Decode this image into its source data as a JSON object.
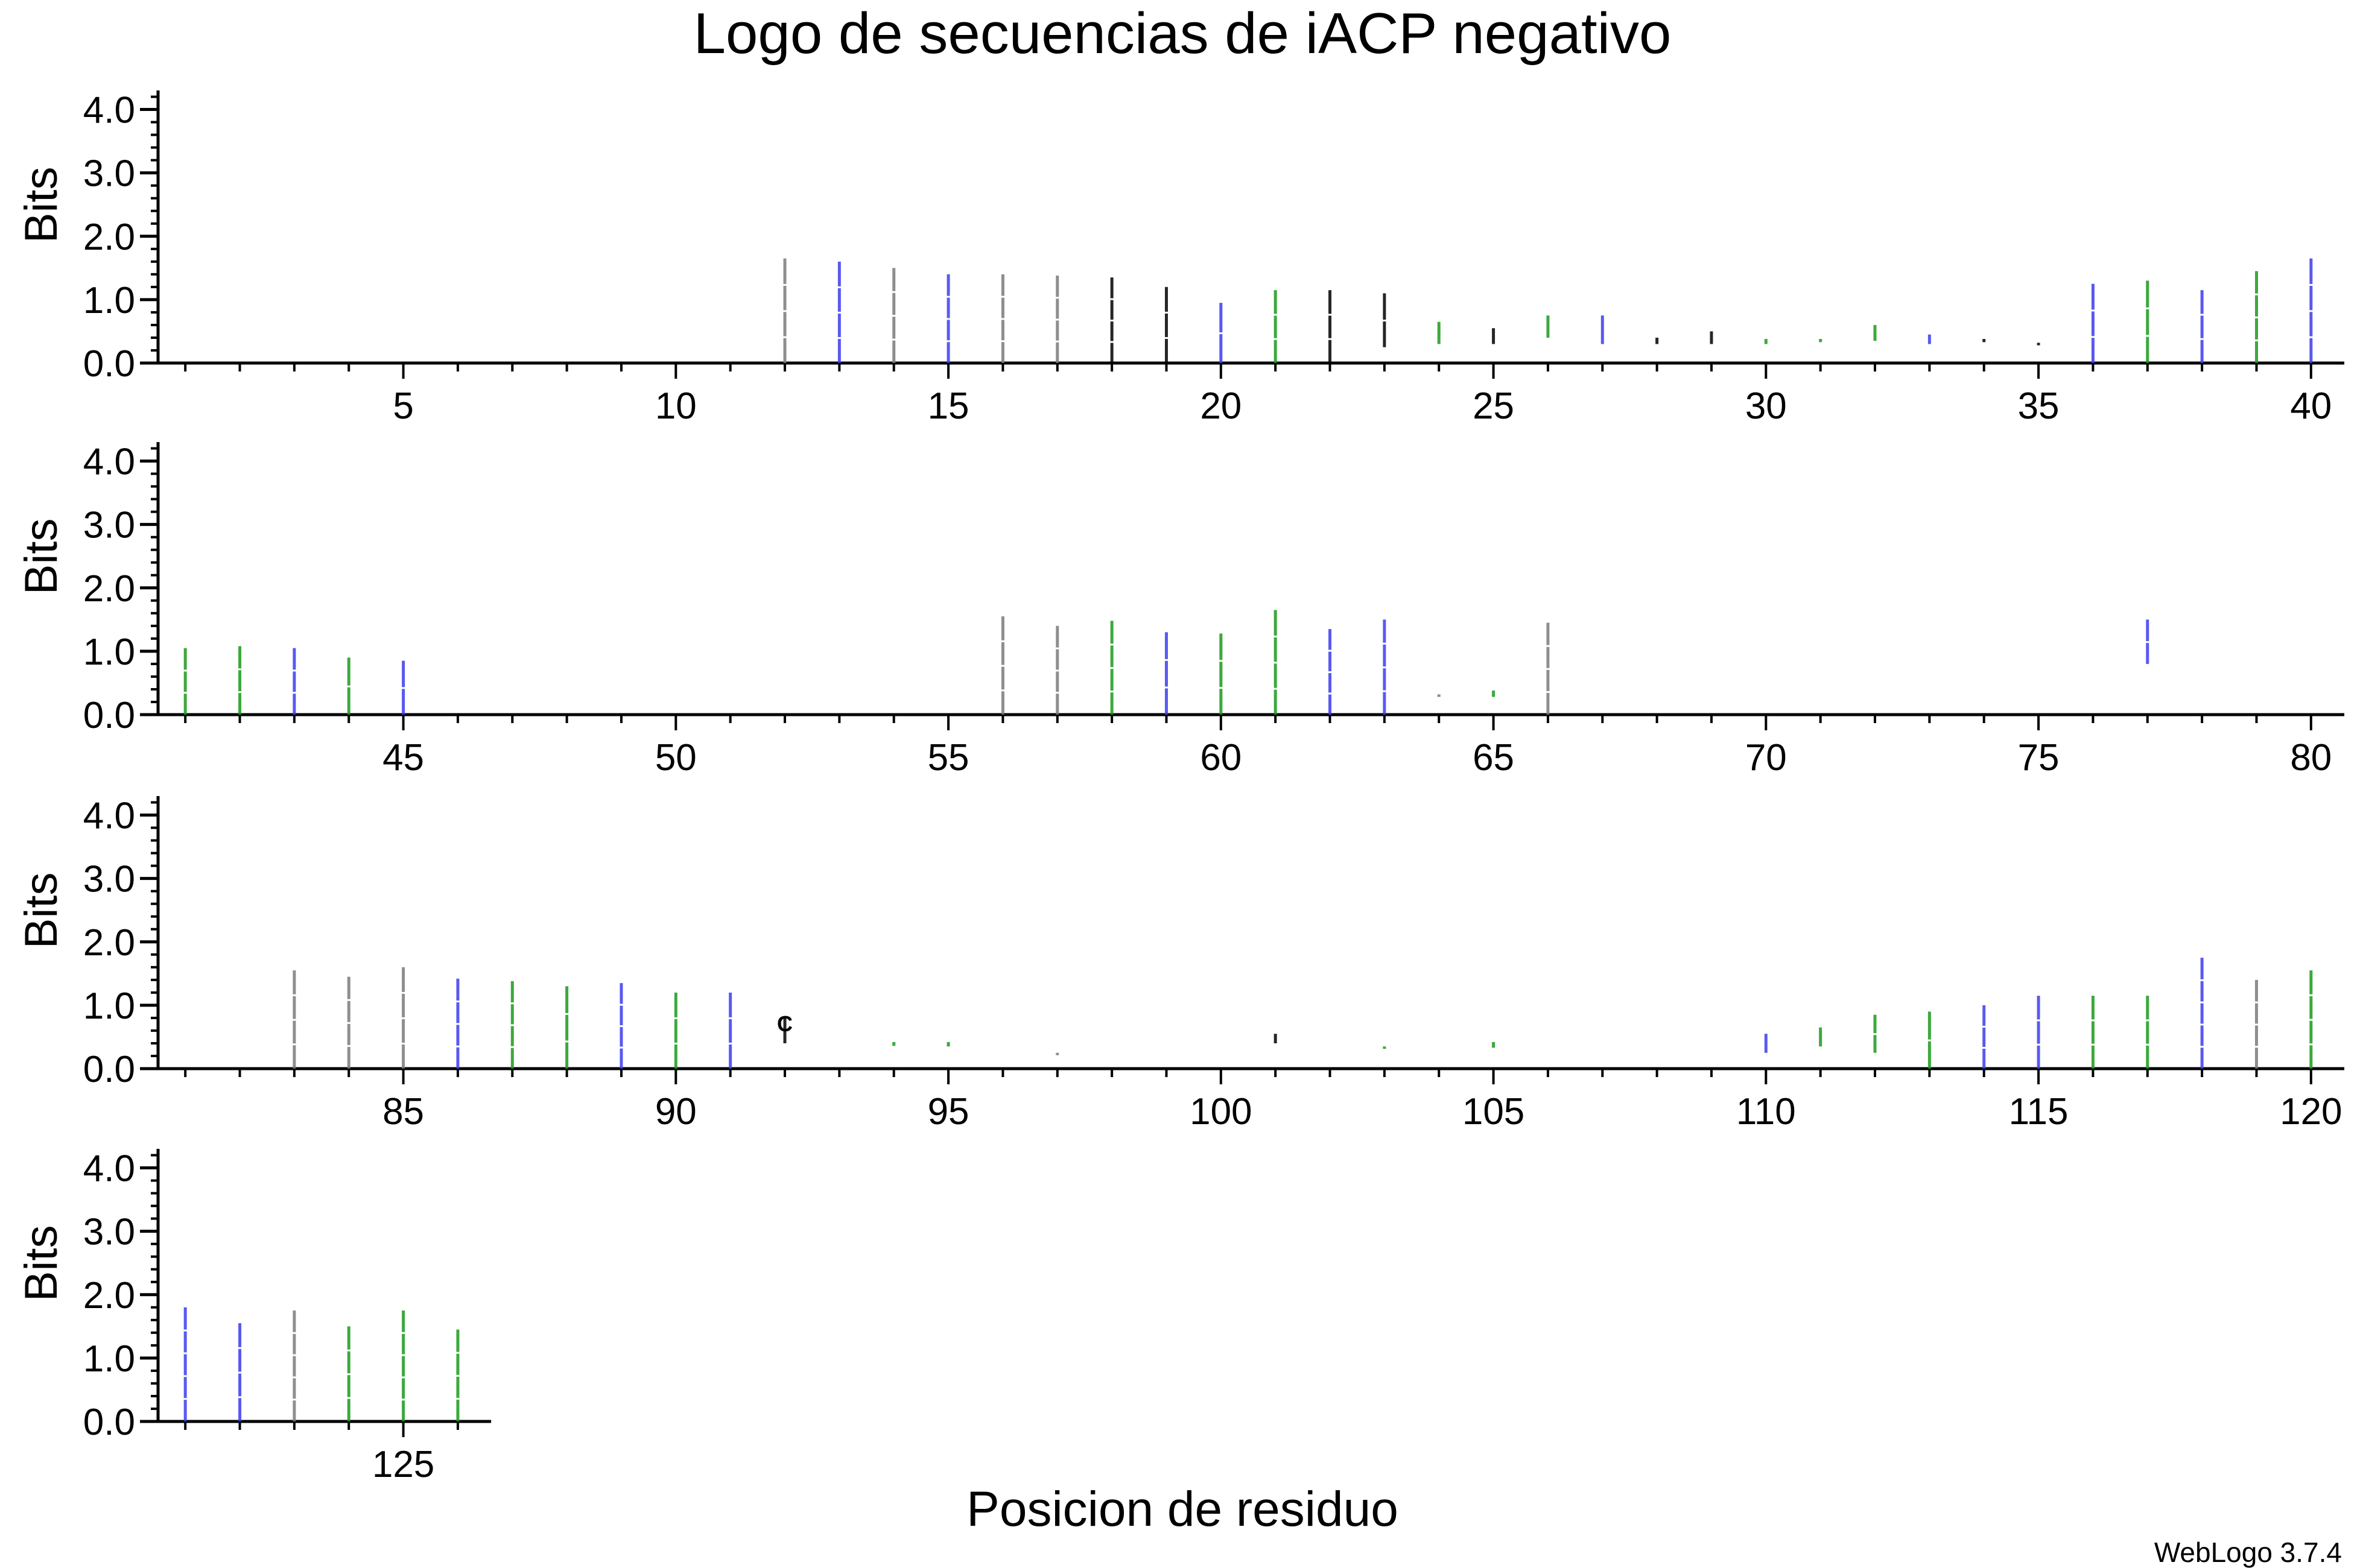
{
  "chart_data": {
    "type": "sequence-logo",
    "title": "Logo de secuencias de iACP negativo",
    "xlabel": "Posicion de residuo",
    "ylabel": "Bits",
    "footer": "WebLogo 3.7.4",
    "ylim": [
      0,
      4.3
    ],
    "yticks": [
      0.0,
      1.0,
      2.0,
      3.0,
      4.0
    ],
    "ytick_labels": [
      "0.0",
      "1.0",
      "2.0",
      "3.0",
      "4.0"
    ],
    "colors": {
      "green": "#1a9a1a",
      "blue": "#3c3cf0",
      "black": "#000000",
      "gray": "#7a7a7a"
    },
    "rows": [
      {
        "start": 1,
        "end": 40,
        "xtick_labels": [
          "5",
          "10",
          "15",
          "20",
          "25",
          "30",
          "35",
          "40"
        ]
      },
      {
        "start": 41,
        "end": 80,
        "xtick_labels": [
          "45",
          "50",
          "55",
          "60",
          "65",
          "70",
          "75",
          "80"
        ]
      },
      {
        "start": 81,
        "end": 120,
        "xtick_labels": [
          "85",
          "90",
          "95",
          "100",
          "105",
          "110",
          "115",
          "120"
        ]
      },
      {
        "start": 121,
        "end": 126,
        "xtick_labels": [
          "125"
        ]
      }
    ],
    "positions": [
      {
        "pos": 12,
        "bits": 1.65,
        "base": 0.0,
        "color": "gray"
      },
      {
        "pos": 13,
        "bits": 1.6,
        "base": 0.0,
        "color": "blue"
      },
      {
        "pos": 14,
        "bits": 1.5,
        "base": 0.0,
        "color": "gray"
      },
      {
        "pos": 15,
        "bits": 1.4,
        "base": 0.0,
        "color": "blue"
      },
      {
        "pos": 16,
        "bits": 1.4,
        "base": 0.0,
        "color": "gray"
      },
      {
        "pos": 17,
        "bits": 1.38,
        "base": 0.0,
        "color": "gray"
      },
      {
        "pos": 18,
        "bits": 1.35,
        "base": 0.0,
        "color": "black"
      },
      {
        "pos": 19,
        "bits": 1.2,
        "base": 0.0,
        "color": "black"
      },
      {
        "pos": 20,
        "bits": 0.95,
        "base": 0.0,
        "color": "blue"
      },
      {
        "pos": 21,
        "bits": 1.15,
        "base": 0.0,
        "color": "green"
      },
      {
        "pos": 22,
        "bits": 1.15,
        "base": 0.0,
        "color": "black"
      },
      {
        "pos": 23,
        "bits": 1.1,
        "base": 0.25,
        "color": "black"
      },
      {
        "pos": 24,
        "bits": 0.65,
        "base": 0.3,
        "color": "green"
      },
      {
        "pos": 25,
        "bits": 0.55,
        "base": 0.3,
        "color": "black"
      },
      {
        "pos": 26,
        "bits": 0.75,
        "base": 0.4,
        "color": "green"
      },
      {
        "pos": 27,
        "bits": 0.75,
        "base": 0.3,
        "color": "blue"
      },
      {
        "pos": 28,
        "bits": 0.4,
        "base": 0.3,
        "color": "black"
      },
      {
        "pos": 29,
        "bits": 0.5,
        "base": 0.3,
        "color": "black"
      },
      {
        "pos": 30,
        "bits": 0.38,
        "base": 0.3,
        "color": "green"
      },
      {
        "pos": 31,
        "bits": 0.38,
        "base": 0.33,
        "color": "green"
      },
      {
        "pos": 32,
        "bits": 0.6,
        "base": 0.35,
        "color": "green"
      },
      {
        "pos": 33,
        "bits": 0.45,
        "base": 0.3,
        "color": "blue"
      },
      {
        "pos": 34,
        "bits": 0.38,
        "base": 0.33,
        "color": "black"
      },
      {
        "pos": 35,
        "bits": 0.32,
        "base": 0.28,
        "color": "black"
      },
      {
        "pos": 36,
        "bits": 1.25,
        "base": 0.0,
        "color": "blue"
      },
      {
        "pos": 37,
        "bits": 1.3,
        "base": 0.0,
        "color": "green"
      },
      {
        "pos": 38,
        "bits": 1.15,
        "base": 0.0,
        "color": "blue"
      },
      {
        "pos": 39,
        "bits": 1.45,
        "base": 0.0,
        "color": "green"
      },
      {
        "pos": 40,
        "bits": 1.65,
        "base": 0.0,
        "color": "blue"
      },
      {
        "pos": 41,
        "bits": 1.05,
        "base": 0.0,
        "color": "green"
      },
      {
        "pos": 42,
        "bits": 1.08,
        "base": 0.0,
        "color": "green"
      },
      {
        "pos": 43,
        "bits": 1.05,
        "base": 0.0,
        "color": "blue"
      },
      {
        "pos": 44,
        "bits": 0.9,
        "base": 0.0,
        "color": "green"
      },
      {
        "pos": 45,
        "bits": 0.85,
        "base": 0.0,
        "color": "blue"
      },
      {
        "pos": 56,
        "bits": 1.55,
        "base": 0.0,
        "color": "gray"
      },
      {
        "pos": 57,
        "bits": 1.4,
        "base": 0.0,
        "color": "gray"
      },
      {
        "pos": 58,
        "bits": 1.48,
        "base": 0.0,
        "color": "green"
      },
      {
        "pos": 59,
        "bits": 1.3,
        "base": 0.0,
        "color": "blue"
      },
      {
        "pos": 60,
        "bits": 1.28,
        "base": 0.0,
        "color": "green"
      },
      {
        "pos": 61,
        "bits": 1.65,
        "base": 0.0,
        "color": "green"
      },
      {
        "pos": 62,
        "bits": 1.35,
        "base": 0.0,
        "color": "blue"
      },
      {
        "pos": 63,
        "bits": 1.5,
        "base": 0.0,
        "color": "blue"
      },
      {
        "pos": 64,
        "bits": 0.32,
        "base": 0.28,
        "color": "gray"
      },
      {
        "pos": 65,
        "bits": 0.38,
        "base": 0.28,
        "color": "green"
      },
      {
        "pos": 66,
        "bits": 1.45,
        "base": 0.0,
        "color": "gray"
      },
      {
        "pos": 77,
        "bits": 1.5,
        "base": 0.8,
        "color": "blue"
      },
      {
        "pos": 83,
        "bits": 1.55,
        "base": 0.0,
        "color": "gray"
      },
      {
        "pos": 84,
        "bits": 1.45,
        "base": 0.0,
        "color": "gray"
      },
      {
        "pos": 85,
        "bits": 1.6,
        "base": 0.0,
        "color": "gray"
      },
      {
        "pos": 86,
        "bits": 1.42,
        "base": 0.0,
        "color": "blue"
      },
      {
        "pos": 87,
        "bits": 1.38,
        "base": 0.0,
        "color": "green"
      },
      {
        "pos": 88,
        "bits": 1.3,
        "base": 0.0,
        "color": "green"
      },
      {
        "pos": 89,
        "bits": 1.35,
        "base": 0.0,
        "color": "blue"
      },
      {
        "pos": 90,
        "bits": 1.2,
        "base": 0.0,
        "color": "green"
      },
      {
        "pos": 91,
        "bits": 1.2,
        "base": 0.0,
        "color": "blue"
      },
      {
        "pos": 92,
        "bits": 0.8,
        "base": 0.4,
        "color": "black"
      },
      {
        "pos": 94,
        "bits": 0.42,
        "base": 0.36,
        "color": "green"
      },
      {
        "pos": 95,
        "bits": 0.42,
        "base": 0.35,
        "color": "green"
      },
      {
        "pos": 97,
        "bits": 0.25,
        "base": 0.22,
        "color": "gray"
      },
      {
        "pos": 101,
        "bits": 0.55,
        "base": 0.4,
        "color": "black"
      },
      {
        "pos": 103,
        "bits": 0.35,
        "base": 0.32,
        "color": "green"
      },
      {
        "pos": 105,
        "bits": 0.42,
        "base": 0.33,
        "color": "green"
      },
      {
        "pos": 110,
        "bits": 0.55,
        "base": 0.25,
        "color": "blue"
      },
      {
        "pos": 111,
        "bits": 0.65,
        "base": 0.35,
        "color": "green"
      },
      {
        "pos": 112,
        "bits": 0.85,
        "base": 0.25,
        "color": "green"
      },
      {
        "pos": 113,
        "bits": 0.9,
        "base": 0.0,
        "color": "green"
      },
      {
        "pos": 114,
        "bits": 1.0,
        "base": 0.0,
        "color": "blue"
      },
      {
        "pos": 115,
        "bits": 1.15,
        "base": 0.0,
        "color": "blue"
      },
      {
        "pos": 116,
        "bits": 1.15,
        "base": 0.0,
        "color": "green"
      },
      {
        "pos": 117,
        "bits": 1.15,
        "base": 0.0,
        "color": "green"
      },
      {
        "pos": 118,
        "bits": 1.75,
        "base": 0.0,
        "color": "blue"
      },
      {
        "pos": 119,
        "bits": 1.4,
        "base": 0.0,
        "color": "gray"
      },
      {
        "pos": 120,
        "bits": 1.55,
        "base": 0.0,
        "color": "green"
      },
      {
        "pos": 121,
        "bits": 1.8,
        "base": 0.0,
        "color": "blue"
      },
      {
        "pos": 122,
        "bits": 1.55,
        "base": 0.0,
        "color": "blue"
      },
      {
        "pos": 123,
        "bits": 1.75,
        "base": 0.0,
        "color": "gray"
      },
      {
        "pos": 124,
        "bits": 1.5,
        "base": 0.0,
        "color": "green"
      },
      {
        "pos": 125,
        "bits": 1.75,
        "base": 0.0,
        "color": "green"
      },
      {
        "pos": 126,
        "bits": 1.45,
        "base": 0.0,
        "color": "green"
      }
    ],
    "glyphs": [
      {
        "pos": 92,
        "letter": "C"
      }
    ]
  }
}
